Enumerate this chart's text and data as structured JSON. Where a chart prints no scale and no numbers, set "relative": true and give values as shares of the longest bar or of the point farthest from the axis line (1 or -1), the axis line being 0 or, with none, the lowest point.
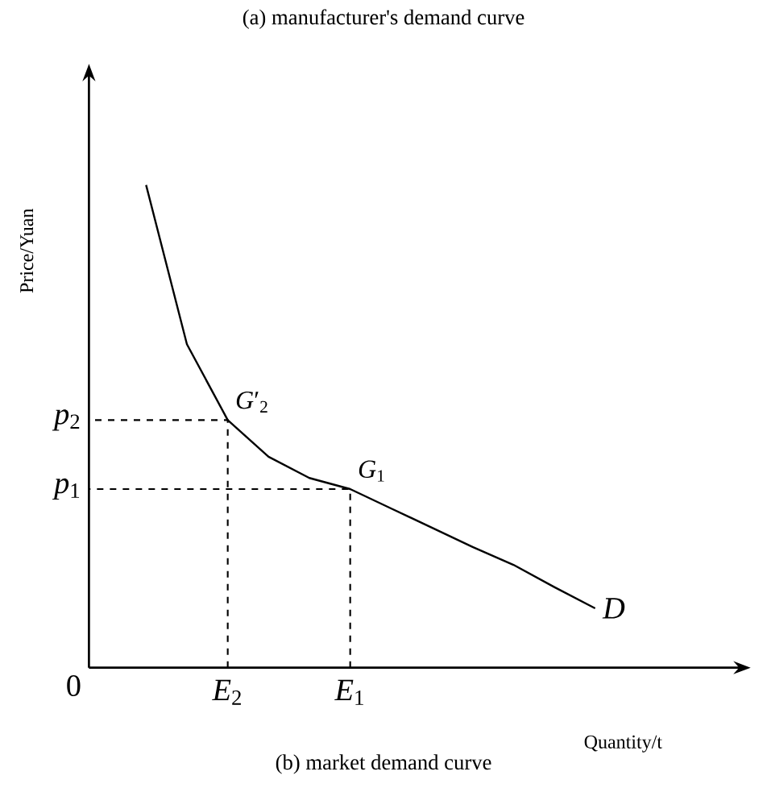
{
  "chart_data": {
    "type": "line",
    "title": "(a) manufacturer's demand curve",
    "xlabel": "Quantity/t",
    "ylabel": "Price/Yuan",
    "relative": true,
    "marker": "none",
    "categories": [
      null,
      null,
      null,
      "*E*$_{2}$",
      null,
      null,
      "*E*$_{1}$",
      null,
      null,
      null,
      null,
      null,
      null
    ],
    "series": [
      {
        "name": "D",
        "color": "#000000",
        "line_style": "solid",
        "values": [
          null,
          1,
          0.67,
          0.513,
          0.437,
          0.393,
          0.37,
          0.33,
          0.29,
          0.25,
          0.213,
          0.167,
          0.123
        ]
      }
    ],
    "annotations": [
      {
        "text": "*G*′$_{2}$",
        "x": "*E*$_{2}$",
        "y": 0.513
      },
      {
        "text": "*G*$_{1}$",
        "x": "*E*$_{1}$",
        "y": 0.37
      },
      "*p*$_{2}$",
      "*p*$_{1}$",
      "0",
      "(b) market demand curve"
    ]
  }
}
